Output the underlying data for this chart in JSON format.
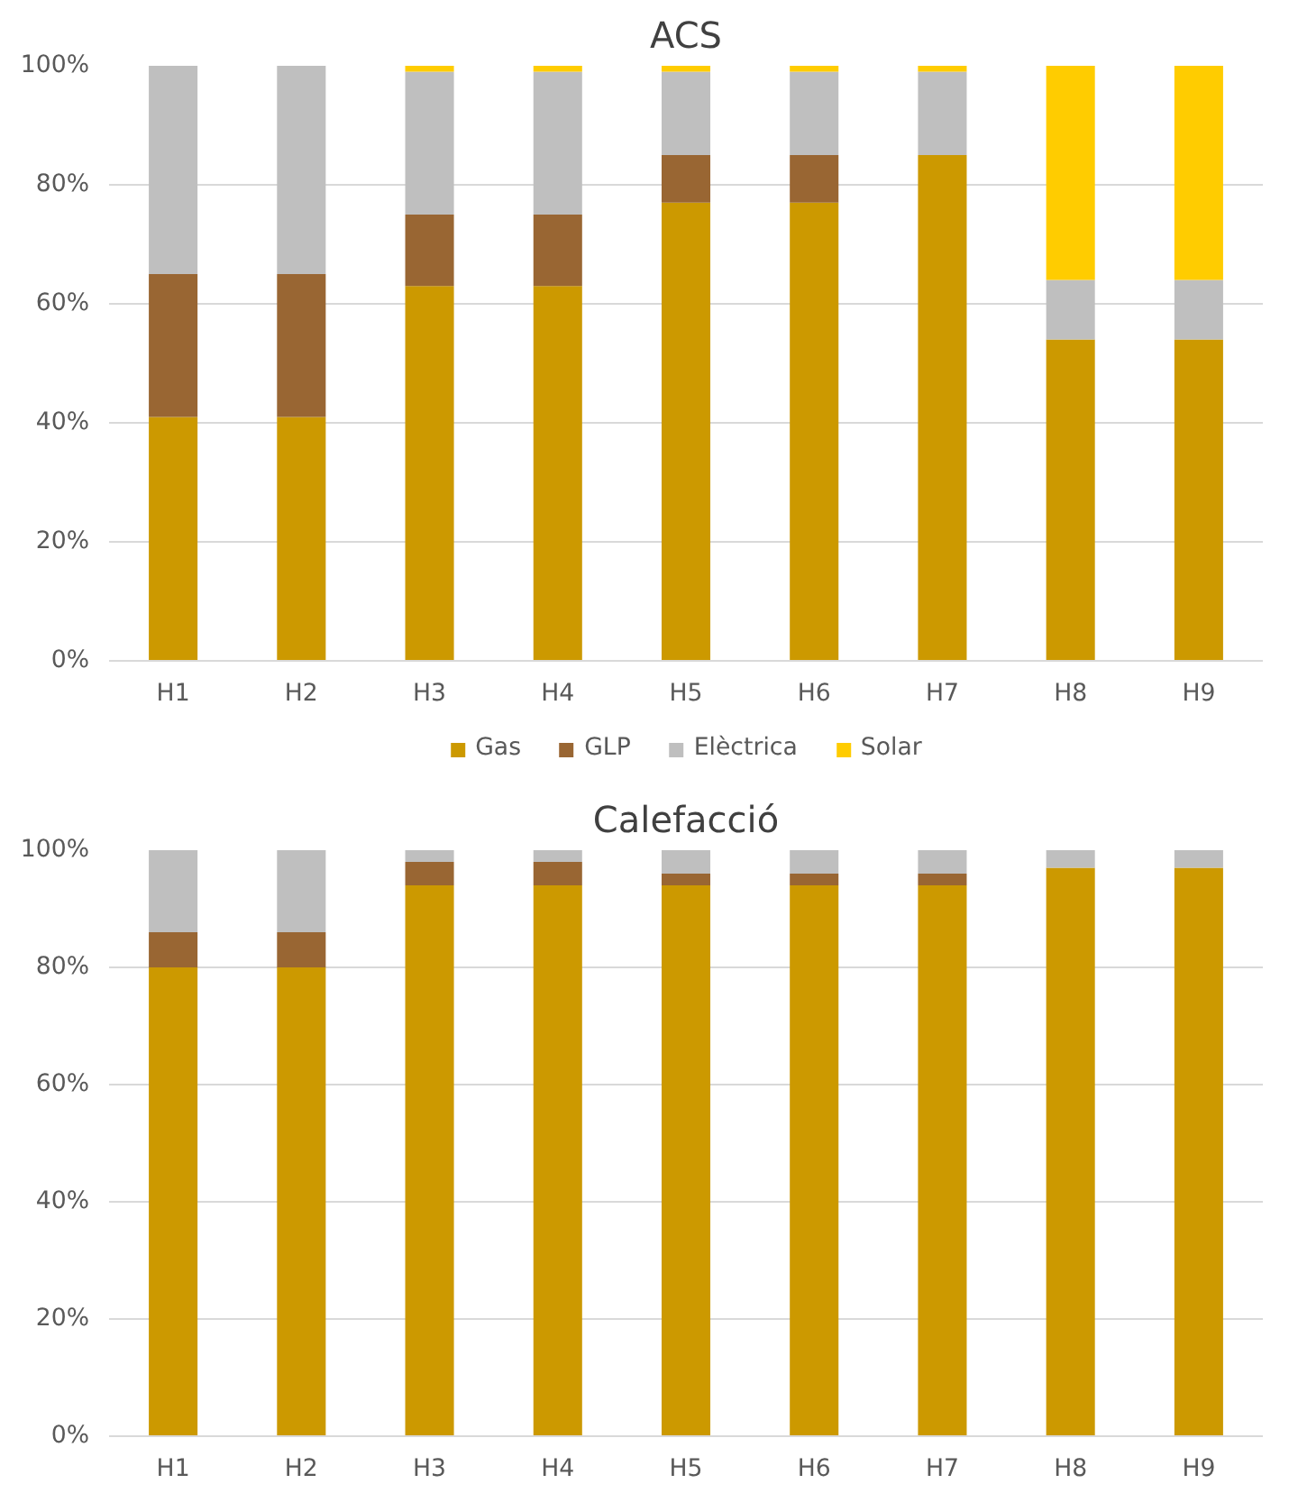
{
  "chart_data": [
    {
      "type": "bar",
      "title": "ACS",
      "stacked": true,
      "categories": [
        "H1",
        "H2",
        "H3",
        "H4",
        "H5",
        "H6",
        "H7",
        "H8",
        "H9"
      ],
      "series": [
        {
          "name": "Gas",
          "color": "#cc9900",
          "values": [
            41,
            41,
            63,
            63,
            77,
            77,
            85,
            54,
            54
          ]
        },
        {
          "name": "GLP",
          "color": "#996633",
          "values": [
            24,
            24,
            12,
            12,
            8,
            8,
            0,
            0,
            0
          ]
        },
        {
          "name": "Elèctrica",
          "color": "#bfbfbf",
          "values": [
            35,
            35,
            24,
            24,
            14,
            14,
            14,
            10,
            10
          ]
        },
        {
          "name": "Solar",
          "color": "#ffcc00",
          "values": [
            0,
            0,
            1,
            1,
            1,
            1,
            1,
            36,
            36
          ]
        }
      ],
      "ylim": [
        0,
        100
      ],
      "yticks": [
        {
          "value": 0,
          "label": "0%"
        },
        {
          "value": 20,
          "label": "20%"
        },
        {
          "value": 40,
          "label": "40%"
        },
        {
          "value": 60,
          "label": "60%"
        },
        {
          "value": 80,
          "label": "80%"
        },
        {
          "value": 100,
          "label": "100%"
        }
      ],
      "grid": "y",
      "legend": "bottom"
    },
    {
      "type": "bar",
      "title": "Calefacció",
      "stacked": true,
      "categories": [
        "H1",
        "H2",
        "H3",
        "H4",
        "H5",
        "H6",
        "H7",
        "H8",
        "H9"
      ],
      "series": [
        {
          "color": "#cc9900",
          "values": [
            80,
            80,
            94,
            94,
            94,
            94,
            94,
            97,
            97
          ]
        },
        {
          "color": "#996633",
          "values": [
            6,
            6,
            4,
            4,
            2,
            2,
            2,
            0,
            0
          ]
        },
        {
          "color": "#bfbfbf",
          "values": [
            14,
            14,
            2,
            2,
            4,
            4,
            4,
            3,
            3
          ]
        }
      ],
      "ylim": [
        0,
        100
      ],
      "yticks": [
        {
          "value": 0,
          "label": "0%"
        },
        {
          "value": 20,
          "label": "20%"
        },
        {
          "value": 40,
          "label": "40%"
        },
        {
          "value": 60,
          "label": "60%"
        },
        {
          "value": 80,
          "label": "80%"
        },
        {
          "value": 100,
          "label": "100%"
        }
      ],
      "grid": "y"
    }
  ]
}
